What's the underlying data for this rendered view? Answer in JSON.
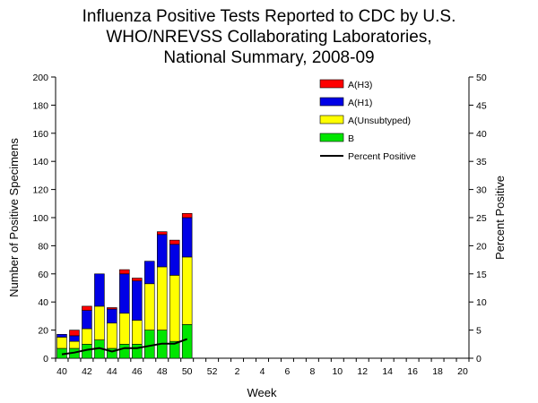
{
  "chart_data": {
    "type": "bar",
    "title_lines": [
      "Influenza Positive Tests Reported to CDC by U.S.",
      "WHO/NREVSS Collaborating Laboratories,",
      "National Summary, 2008-09"
    ],
    "xlabel": "Week",
    "ylabel_left": "Number of Positive Specimens",
    "ylabel_right": "Percent Positive",
    "ylim_left": [
      0,
      200
    ],
    "ylim_right": [
      0,
      50
    ],
    "yticks_left": [
      "0",
      "20",
      "40",
      "60",
      "80",
      "100",
      "120",
      "140",
      "160",
      "180",
      "200"
    ],
    "yticks_right": [
      "0",
      "5",
      "10",
      "15",
      "20",
      "25",
      "30",
      "35",
      "40",
      "45",
      "50"
    ],
    "x_weeks": [
      "40",
      "41",
      "42",
      "43",
      "44",
      "45",
      "46",
      "47",
      "48",
      "49",
      "50",
      "51",
      "52",
      "1",
      "2",
      "3",
      "4",
      "5",
      "6",
      "7",
      "8",
      "9",
      "10",
      "11",
      "12",
      "13",
      "14",
      "15",
      "16",
      "17",
      "18",
      "19",
      "20"
    ],
    "x_tick_labels": [
      "40",
      "",
      "42",
      "",
      "44",
      "",
      "46",
      "",
      "48",
      "",
      "50",
      "",
      "52",
      "",
      "2",
      "",
      "4",
      "",
      "6",
      "",
      "8",
      "",
      "10",
      "",
      "12",
      "",
      "14",
      "",
      "16",
      "",
      "18",
      "",
      "20"
    ],
    "legend_position": "top-right",
    "series": [
      {
        "name": "B",
        "color": "#00e600",
        "values": [
          7,
          7,
          10,
          13,
          7,
          10,
          10,
          20,
          20,
          12,
          24
        ]
      },
      {
        "name": "A(Unsubtyped)",
        "color": "#ffff00",
        "values": [
          8,
          5,
          11,
          24,
          18,
          22,
          17,
          33,
          45,
          47,
          48
        ]
      },
      {
        "name": "A(H1)",
        "color": "#0000e6",
        "values": [
          2,
          4,
          13,
          23,
          10,
          28,
          28,
          16,
          23,
          22,
          28
        ]
      },
      {
        "name": "A(H3)",
        "color": "#ff0000",
        "values": [
          0,
          4,
          3,
          0,
          1,
          3,
          2,
          0,
          2,
          3,
          3
        ]
      }
    ],
    "line_series": {
      "name": "Percent Positive",
      "color": "#000000",
      "values": [
        0.7,
        1.0,
        1.5,
        1.8,
        1.2,
        1.8,
        1.8,
        2.2,
        2.6,
        2.6,
        3.4
      ]
    },
    "legend_order": [
      "A(H3)",
      "A(H1)",
      "A(Unsubtyped)",
      "B",
      "Percent Positive"
    ]
  }
}
